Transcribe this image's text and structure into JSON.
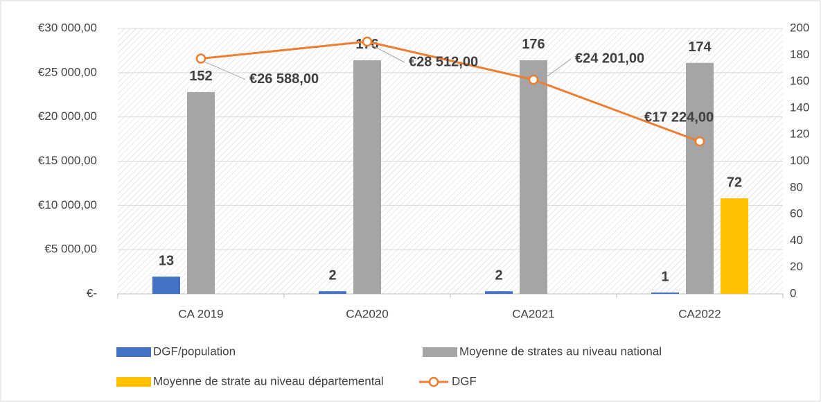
{
  "chart_data": {
    "type": "bar",
    "categories": [
      "CA 2019",
      "CA2020",
      "CA2021",
      "CA2022"
    ],
    "series": [
      {
        "name": "DGF/population",
        "type": "bar",
        "axis": "y2",
        "color": "#4472c4",
        "values": [
          13,
          2,
          2,
          1
        ]
      },
      {
        "name": "Moyenne de strates au niveau national",
        "type": "bar",
        "axis": "y2",
        "color": "#a5a5a5",
        "values": [
          152,
          176,
          176,
          174
        ]
      },
      {
        "name": "Moyenne de strate au niveau départemental",
        "type": "bar",
        "axis": "y2",
        "color": "#ffc000",
        "values": [
          null,
          null,
          null,
          72
        ]
      },
      {
        "name": "DGF",
        "type": "line",
        "axis": "y",
        "color": "#ed7d31",
        "values": [
          26588,
          28512,
          24201,
          17224
        ],
        "value_labels": [
          "€26 588,00",
          "€28 512,00",
          "€24 201,00",
          "€17 224,00"
        ]
      }
    ],
    "ylim": [
      0,
      30000
    ],
    "yticks": [
      {
        "value": 0,
        "label": "€-"
      },
      {
        "value": 5000,
        "label": "€5 000,00"
      },
      {
        "value": 10000,
        "label": "€10 000,00"
      },
      {
        "value": 15000,
        "label": "€15 000,00"
      },
      {
        "value": 20000,
        "label": "€20 000,00"
      },
      {
        "value": 25000,
        "label": "€25 000,00"
      },
      {
        "value": 30000,
        "label": "€30 000,00"
      }
    ],
    "y2lim": [
      0,
      200
    ],
    "y2ticks": [
      0,
      20,
      40,
      60,
      80,
      100,
      120,
      140,
      160,
      180,
      200
    ],
    "grid": true,
    "legend": "bottom"
  }
}
